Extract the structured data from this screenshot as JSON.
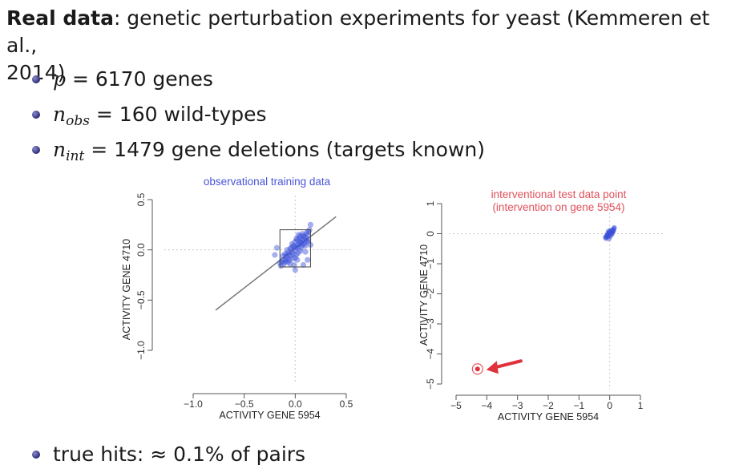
{
  "heading": {
    "bold": "Real data",
    "rest": ": genetic perturbation experiments for yeast (Kemmeren et al.,",
    "line2": "2014)"
  },
  "bullets": [
    {
      "lhs": "p",
      "sub": "",
      "rest": " = 6170 genes"
    },
    {
      "lhs": "n",
      "sub": "obs",
      "rest": " = 160 wild-types"
    },
    {
      "lhs": "n",
      "sub": "int",
      "rest": " = 1479 gene deletions (targets known)"
    }
  ],
  "final_bullet": "true hits: ≈ 0.1% of pairs",
  "colors": {
    "points": "#3a4fd6",
    "highlight": "#e0323c",
    "title_left": "#4a55d8",
    "title_right": "#e0505a",
    "axis": "#555555"
  },
  "chart_data": [
    {
      "type": "scatter",
      "title": "observational training data",
      "xlabel": "ACTIVITY GENE  5954",
      "ylabel": "ACTIVITY GENE  4710",
      "xlim": [
        -1.0,
        0.5
      ],
      "ylim": [
        -1.0,
        0.5
      ],
      "xticks": [
        "−1.0",
        "−0.5",
        "0.0",
        "0.5"
      ],
      "yticks": [
        "−1.0",
        "−0.5",
        "0.0",
        "0.5"
      ],
      "xtick_values": [
        -1.0,
        -0.5,
        0.0,
        0.5
      ],
      "ytick_values": [
        -1.0,
        -0.5,
        0.0,
        0.5
      ],
      "series": [
        {
          "points": [
            [
              0.0,
              0.0
            ],
            [
              0.02,
              0.05
            ],
            [
              -0.03,
              -0.02
            ],
            [
              0.05,
              0.08
            ],
            [
              -0.06,
              -0.05
            ],
            [
              0.08,
              0.1
            ],
            [
              -0.08,
              -0.08
            ],
            [
              0.1,
              0.12
            ],
            [
              -0.1,
              -0.12
            ],
            [
              0.03,
              -0.03
            ],
            [
              -0.02,
              0.04
            ],
            [
              0.06,
              0.02
            ],
            [
              -0.05,
              0.01
            ],
            [
              0.12,
              0.15
            ],
            [
              -0.12,
              -0.1
            ],
            [
              0.04,
              0.06
            ],
            [
              -0.04,
              -0.06
            ],
            [
              0.07,
              0.05
            ],
            [
              -0.07,
              -0.03
            ],
            [
              0.01,
              0.02
            ],
            [
              0.09,
              0.06
            ],
            [
              -0.09,
              -0.06
            ],
            [
              0.11,
              0.09
            ],
            [
              -0.11,
              -0.14
            ],
            [
              0.13,
              0.18
            ],
            [
              -0.13,
              -0.12
            ],
            [
              0.0,
              -0.08
            ],
            [
              0.02,
              0.1
            ],
            [
              -0.01,
              -0.15
            ],
            [
              0.05,
              -0.01
            ],
            [
              -0.03,
              0.06
            ],
            [
              0.08,
              0.14
            ],
            [
              -0.06,
              -0.1
            ],
            [
              0.14,
              0.2
            ],
            [
              0.15,
              0.25
            ],
            [
              -0.14,
              -0.16
            ],
            [
              0.06,
              0.1
            ],
            [
              -0.02,
              -0.04
            ],
            [
              0.03,
              0.03
            ],
            [
              -0.08,
              0.0
            ],
            [
              0.1,
              0.04
            ],
            [
              -0.05,
              -0.14
            ],
            [
              0.01,
              -0.05
            ],
            [
              0.04,
              0.12
            ],
            [
              -0.1,
              -0.04
            ],
            [
              0.09,
              0.13
            ],
            [
              0.12,
              0.08
            ],
            [
              -0.12,
              -0.06
            ],
            [
              0.0,
              0.08
            ],
            [
              -0.04,
              0.02
            ],
            [
              0.07,
              0.16
            ],
            [
              -0.15,
              -0.13
            ],
            [
              0.1,
              -0.02
            ],
            [
              -0.07,
              -0.12
            ],
            [
              0.02,
              -0.1
            ],
            [
              0.05,
              0.14
            ],
            [
              -0.01,
              0.03
            ],
            [
              0.11,
              0.17
            ],
            [
              -0.09,
              -0.1
            ],
            [
              0.13,
              0.1
            ],
            [
              0.15,
              0.05
            ],
            [
              -0.2,
              -0.05
            ],
            [
              0.12,
              -0.1
            ],
            [
              0.08,
              -0.15
            ],
            [
              -0.18,
              0.02
            ],
            [
              0.0,
              -0.2
            ],
            [
              0.03,
              0.15
            ],
            [
              0.06,
              0.07
            ],
            [
              -0.03,
              -0.09
            ],
            [
              0.01,
              0.11
            ]
          ]
        }
      ],
      "box": {
        "x": [
          -0.15,
          0.15
        ],
        "y": [
          -0.17,
          0.2
        ]
      },
      "fit_line": {
        "x": [
          -0.78,
          0.4
        ],
        "y": [
          -0.6,
          0.33
        ]
      }
    },
    {
      "type": "scatter",
      "title": "interventional test data point",
      "subtitle": "(intervention on gene 5954)",
      "xlabel": "ACTIVITY GENE  5954",
      "ylabel": "ACTIVITY GENE  4710",
      "xlim": [
        -5,
        1
      ],
      "ylim": [
        -5,
        1
      ],
      "xticks": [
        "−5",
        "−4",
        "−3",
        "−2",
        "−1",
        "0",
        "1"
      ],
      "yticks": [
        "−5",
        "−4",
        "−3",
        "−2",
        "−1",
        "0",
        "1"
      ],
      "xtick_values": [
        -5,
        -4,
        -3,
        -2,
        -1,
        0,
        1
      ],
      "ytick_values": [
        -5,
        -4,
        -3,
        -2,
        -1,
        0,
        1
      ],
      "series": [
        {
          "points": [
            [
              0.0,
              0.0
            ],
            [
              0.03,
              0.05
            ],
            [
              -0.04,
              -0.03
            ],
            [
              0.06,
              0.08
            ],
            [
              -0.07,
              -0.06
            ],
            [
              0.1,
              0.1
            ],
            [
              -0.09,
              -0.1
            ],
            [
              0.12,
              0.14
            ],
            [
              -0.12,
              -0.12
            ],
            [
              0.04,
              -0.05
            ],
            [
              -0.02,
              0.06
            ],
            [
              0.08,
              0.02
            ],
            [
              -0.06,
              0.02
            ],
            [
              0.14,
              0.18
            ],
            [
              -0.14,
              -0.12
            ],
            [
              0.05,
              0.07
            ],
            [
              -0.05,
              -0.08
            ],
            [
              0.09,
              0.05
            ],
            [
              -0.08,
              -0.03
            ],
            [
              0.02,
              0.03
            ],
            [
              0.11,
              0.07
            ],
            [
              -0.1,
              -0.07
            ],
            [
              0.13,
              0.11
            ],
            [
              -0.12,
              -0.16
            ],
            [
              0.15,
              0.2
            ],
            [
              0.0,
              -0.1
            ],
            [
              0.03,
              0.12
            ],
            [
              -0.02,
              -0.17
            ],
            [
              0.07,
              -0.02
            ],
            [
              -0.04,
              0.08
            ]
          ]
        }
      ],
      "highlight_point": [
        -4.3,
        -4.5
      ]
    }
  ]
}
